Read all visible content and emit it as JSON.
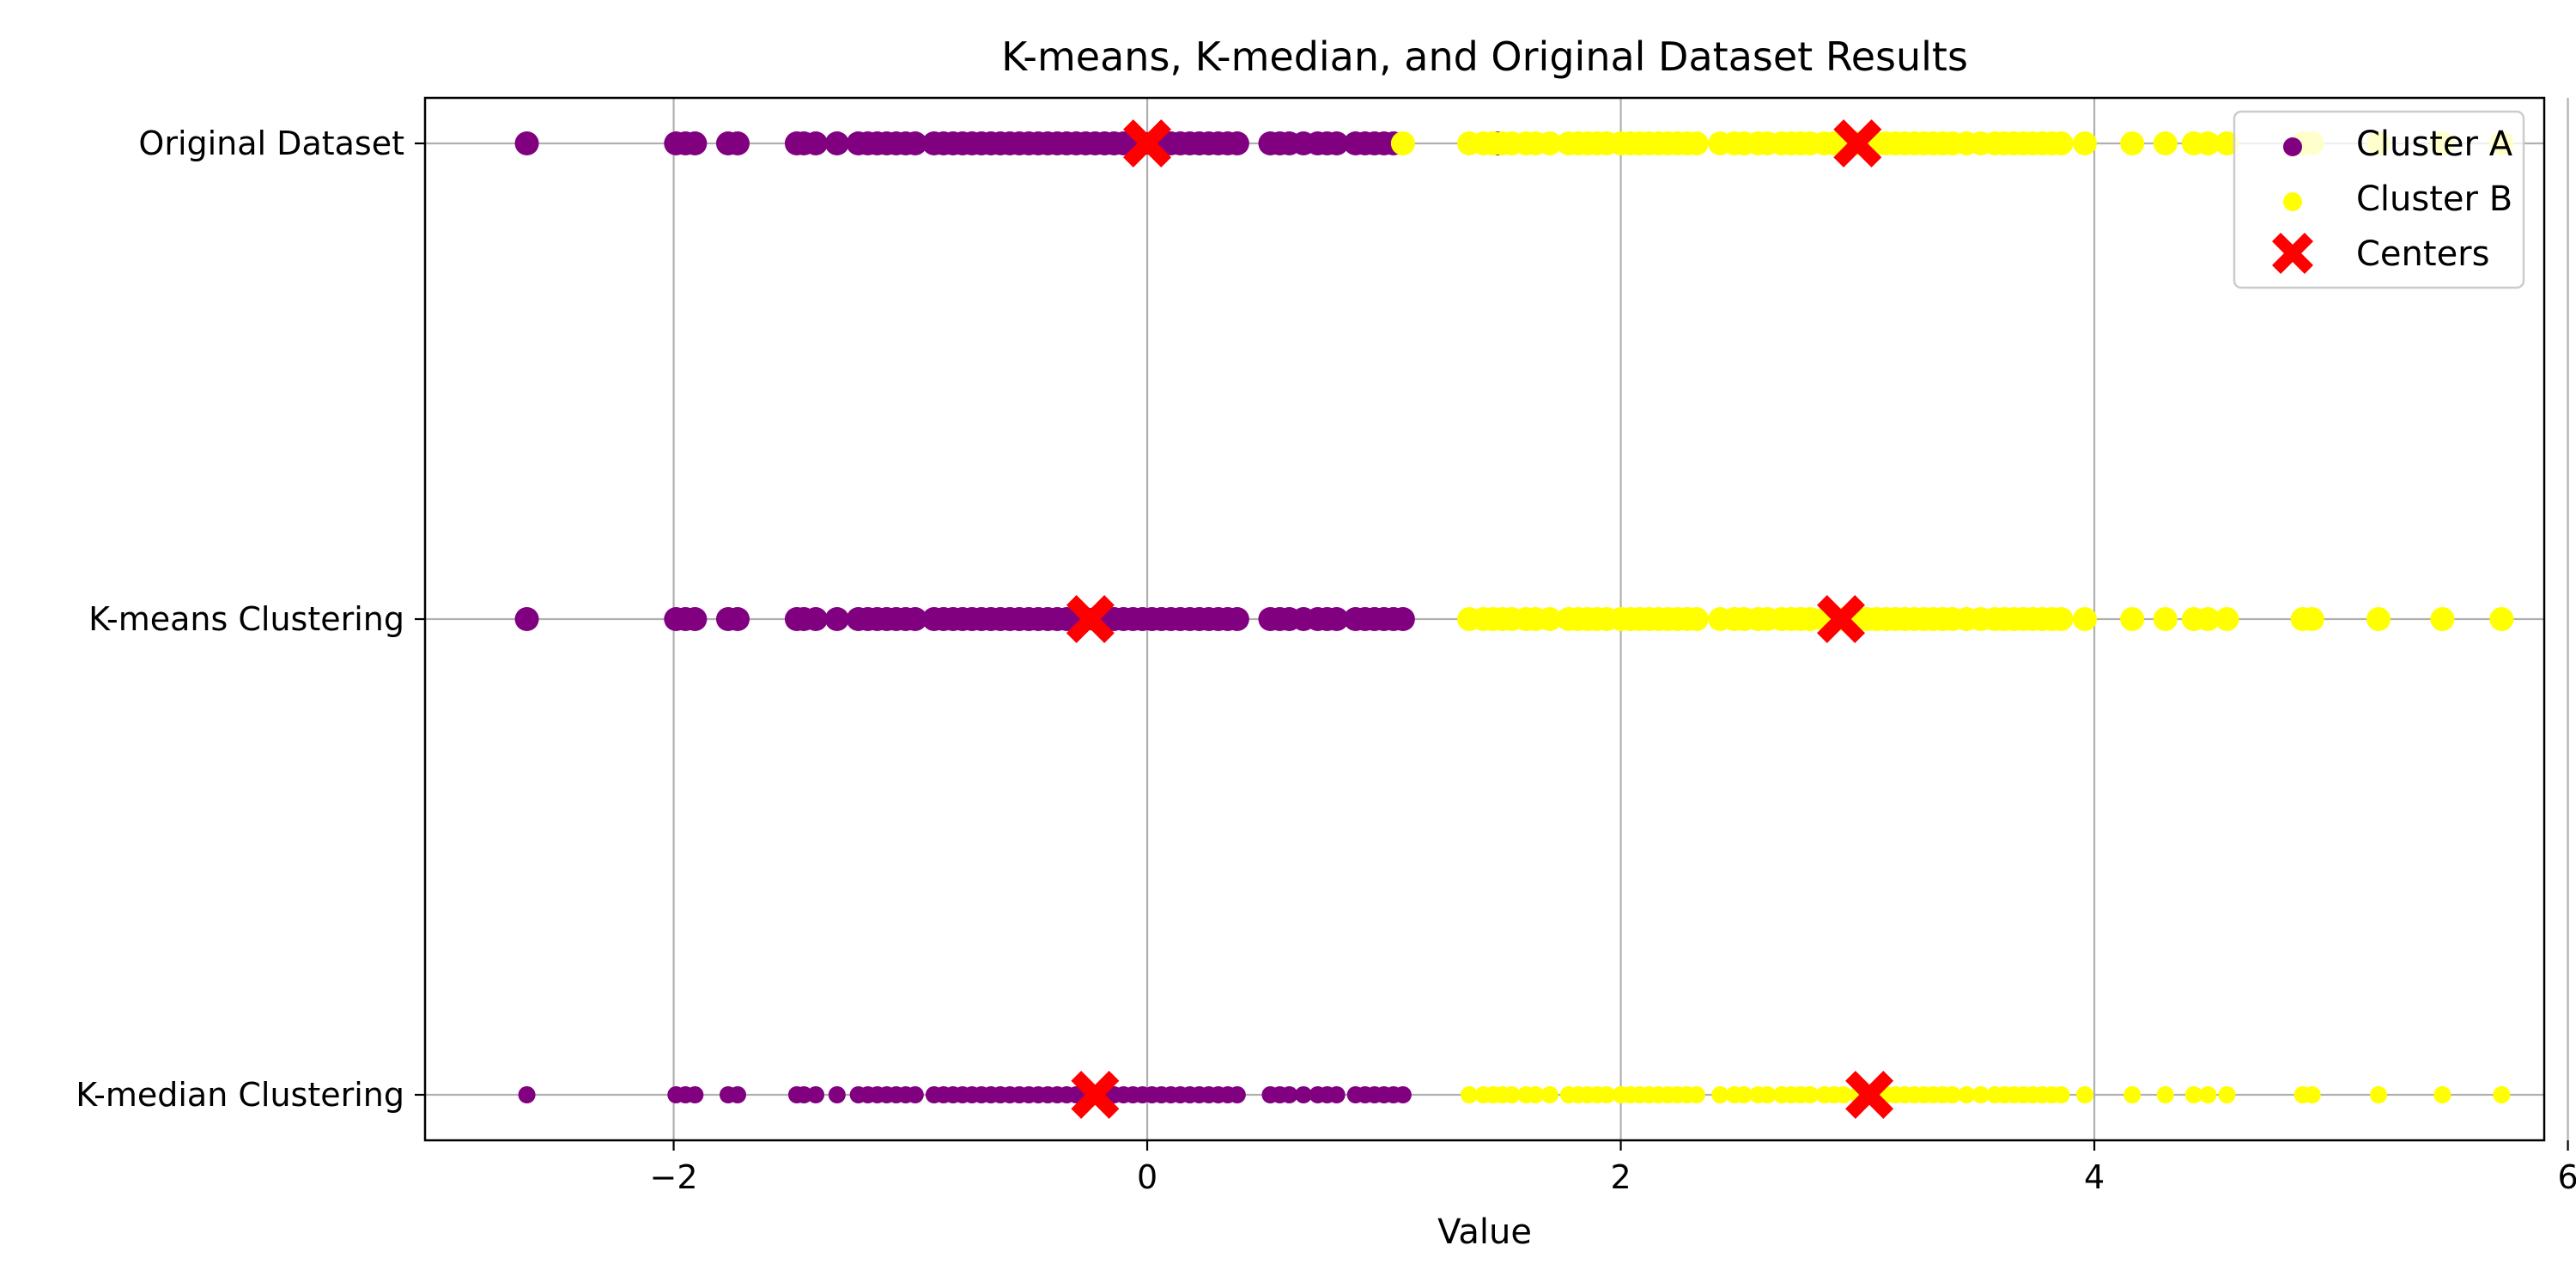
{
  "chart_data": {
    "type": "scatter",
    "title": "K-means, K-median, and Original Dataset Results",
    "xlabel": "Value",
    "ylabel": "",
    "xlim": [
      -3.05,
      5.9
    ],
    "xticks": [
      -2,
      0,
      2,
      4,
      6
    ],
    "xtick_labels": [
      "−2",
      "0",
      "2",
      "4",
      "6"
    ],
    "grid": true,
    "legend_position": "top-right",
    "colors": {
      "cluster_a": "#800080",
      "cluster_b": "#ffff00",
      "centers": "#ff0000",
      "grid": "#b0b0b0"
    },
    "rows": [
      {
        "label": "Original Dataset",
        "cluster_a": [
          -2.62,
          -1.99,
          -1.95,
          -1.91,
          -1.77,
          -1.73,
          -1.48,
          -1.45,
          -1.4,
          -1.31,
          -1.22,
          -1.18,
          -1.14,
          -1.1,
          -1.06,
          -1.02,
          -0.98,
          -0.9,
          -0.86,
          -0.82,
          -0.78,
          -0.74,
          -0.7,
          -0.66,
          -0.62,
          -0.58,
          -0.54,
          -0.5,
          -0.46,
          -0.42,
          -0.38,
          -0.34,
          -0.3,
          -0.26,
          -0.22,
          -0.18,
          -0.14,
          -0.1,
          -0.06,
          -0.02,
          0.02,
          0.06,
          0.1,
          0.14,
          0.18,
          0.22,
          0.26,
          0.3,
          0.34,
          0.38,
          0.52,
          0.56,
          0.6,
          0.66,
          0.72,
          0.76,
          0.8,
          0.88,
          0.92,
          0.96,
          1.0,
          1.04,
          1.48
        ],
        "cluster_b": [
          1.08,
          1.36,
          1.42,
          1.46,
          1.5,
          1.54,
          1.6,
          1.64,
          1.7,
          1.78,
          1.82,
          1.86,
          1.9,
          1.94,
          2.0,
          2.04,
          2.08,
          2.12,
          2.16,
          2.2,
          2.24,
          2.28,
          2.32,
          2.42,
          2.48,
          2.52,
          2.58,
          2.62,
          2.68,
          2.72,
          2.76,
          2.8,
          2.86,
          2.9,
          2.94,
          3.0,
          3.04,
          3.08,
          3.12,
          3.16,
          3.2,
          3.24,
          3.28,
          3.32,
          3.36,
          3.4,
          3.46,
          3.52,
          3.58,
          3.62,
          3.66,
          3.7,
          3.74,
          3.78,
          3.82,
          3.86,
          3.96,
          4.16,
          4.3,
          4.42,
          4.48,
          4.56,
          4.88,
          4.92,
          5.2,
          5.47,
          5.72
        ],
        "centers": [
          0.0,
          3.0
        ]
      },
      {
        "label": "K-means Clustering",
        "cluster_a": [
          -2.62,
          -1.99,
          -1.95,
          -1.91,
          -1.77,
          -1.73,
          -1.48,
          -1.45,
          -1.4,
          -1.31,
          -1.22,
          -1.18,
          -1.14,
          -1.1,
          -1.06,
          -1.02,
          -0.98,
          -0.9,
          -0.86,
          -0.82,
          -0.78,
          -0.74,
          -0.7,
          -0.66,
          -0.62,
          -0.58,
          -0.54,
          -0.5,
          -0.46,
          -0.42,
          -0.38,
          -0.34,
          -0.3,
          -0.26,
          -0.22,
          -0.18,
          -0.14,
          -0.1,
          -0.06,
          -0.02,
          0.02,
          0.06,
          0.1,
          0.14,
          0.18,
          0.22,
          0.26,
          0.3,
          0.34,
          0.38,
          0.52,
          0.56,
          0.6,
          0.66,
          0.72,
          0.76,
          0.8,
          0.88,
          0.92,
          0.96,
          1.0,
          1.04,
          1.08
        ],
        "cluster_b": [
          1.36,
          1.42,
          1.46,
          1.5,
          1.54,
          1.6,
          1.64,
          1.7,
          1.78,
          1.82,
          1.86,
          1.9,
          1.94,
          2.0,
          2.04,
          2.08,
          2.12,
          2.16,
          2.2,
          2.24,
          2.28,
          2.32,
          2.42,
          2.48,
          2.52,
          2.58,
          2.62,
          2.68,
          2.72,
          2.76,
          2.8,
          2.86,
          2.9,
          2.94,
          3.0,
          3.04,
          3.08,
          3.12,
          3.16,
          3.2,
          3.24,
          3.28,
          3.32,
          3.36,
          3.4,
          3.46,
          3.52,
          3.58,
          3.62,
          3.66,
          3.7,
          3.74,
          3.78,
          3.82,
          3.86,
          3.96,
          4.16,
          4.3,
          4.42,
          4.48,
          4.56,
          4.88,
          4.92,
          5.2,
          5.47,
          5.72
        ],
        "centers": [
          -0.24,
          2.93
        ]
      },
      {
        "label": "K-median Clustering",
        "cluster_a": [
          -2.62,
          -1.99,
          -1.95,
          -1.91,
          -1.77,
          -1.73,
          -1.48,
          -1.45,
          -1.4,
          -1.31,
          -1.22,
          -1.18,
          -1.14,
          -1.1,
          -1.06,
          -1.02,
          -0.98,
          -0.9,
          -0.86,
          -0.82,
          -0.78,
          -0.74,
          -0.7,
          -0.66,
          -0.62,
          -0.58,
          -0.54,
          -0.5,
          -0.46,
          -0.42,
          -0.38,
          -0.34,
          -0.3,
          -0.26,
          -0.22,
          -0.18,
          -0.14,
          -0.1,
          -0.06,
          -0.02,
          0.02,
          0.06,
          0.1,
          0.14,
          0.18,
          0.22,
          0.26,
          0.3,
          0.34,
          0.38,
          0.52,
          0.56,
          0.6,
          0.66,
          0.72,
          0.76,
          0.8,
          0.88,
          0.92,
          0.96,
          1.0,
          1.04,
          1.08
        ],
        "cluster_b": [
          1.36,
          1.42,
          1.46,
          1.5,
          1.54,
          1.6,
          1.64,
          1.7,
          1.78,
          1.82,
          1.86,
          1.9,
          1.94,
          2.0,
          2.04,
          2.08,
          2.12,
          2.16,
          2.2,
          2.24,
          2.28,
          2.32,
          2.42,
          2.48,
          2.52,
          2.58,
          2.62,
          2.68,
          2.72,
          2.76,
          2.8,
          2.86,
          2.9,
          2.94,
          3.0,
          3.04,
          3.08,
          3.12,
          3.16,
          3.2,
          3.24,
          3.28,
          3.32,
          3.36,
          3.4,
          3.46,
          3.52,
          3.58,
          3.62,
          3.66,
          3.7,
          3.74,
          3.78,
          3.82,
          3.86,
          3.96,
          4.16,
          4.3,
          4.42,
          4.48,
          4.56,
          4.88,
          4.92,
          5.2,
          5.47,
          5.72
        ],
        "centers": [
          -0.22,
          3.05
        ]
      }
    ],
    "legend": [
      {
        "label": "Cluster A",
        "marker": "circle",
        "color": "#800080"
      },
      {
        "label": "Cluster B",
        "marker": "circle",
        "color": "#ffff00"
      },
      {
        "label": "Centers",
        "marker": "x",
        "color": "#ff0000"
      }
    ]
  }
}
